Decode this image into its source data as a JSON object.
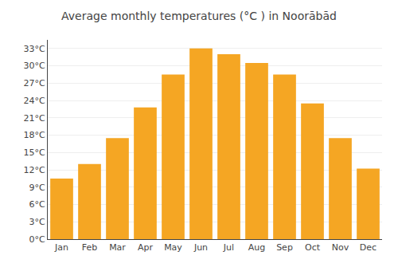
{
  "chart_data": {
    "type": "bar",
    "title": "Average monthly temperatures (°C ) in Noorābād",
    "categories": [
      "Jan",
      "Feb",
      "Mar",
      "Apr",
      "May",
      "Jun",
      "Jul",
      "Aug",
      "Sep",
      "Oct",
      "Nov",
      "Dec"
    ],
    "values": [
      10.5,
      13.0,
      17.5,
      22.8,
      28.5,
      33.0,
      32.0,
      30.5,
      28.5,
      23.5,
      17.5,
      12.2
    ],
    "color": "#F5A623",
    "ylim": [
      0,
      34.5
    ],
    "yticks": [
      {
        "value": 0,
        "label": "0°C"
      },
      {
        "value": 3,
        "label": "3°C"
      },
      {
        "value": 6,
        "label": "6°C"
      },
      {
        "value": 9,
        "label": "9°C"
      },
      {
        "value": 12,
        "label": "12°C"
      },
      {
        "value": 15,
        "label": "15°C"
      },
      {
        "value": 18,
        "label": "18°C"
      },
      {
        "value": 21,
        "label": "21°C"
      },
      {
        "value": 24,
        "label": "24°C"
      },
      {
        "value": 27,
        "label": "27°C"
      },
      {
        "value": 30,
        "label": "30°C"
      },
      {
        "value": 33,
        "label": "33°C"
      }
    ],
    "grid": true
  }
}
